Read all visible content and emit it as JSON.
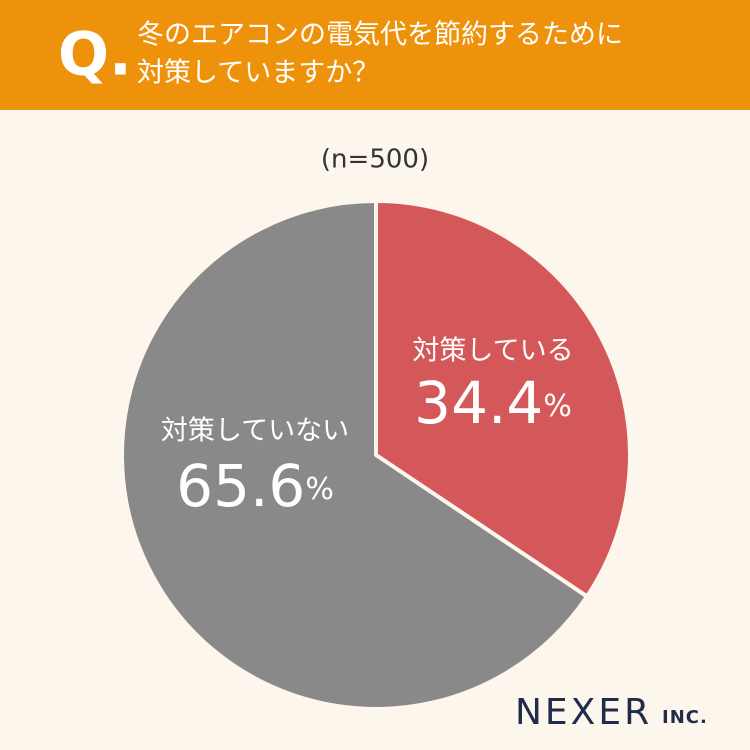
{
  "chart_data": {
    "type": "pie",
    "question_marker": "Q.",
    "title": [
      "冬のエアコンの電気代を節約するために",
      "対策していますか？"
    ],
    "subtitle": "(n=500)",
    "categories": [
      "対策している",
      "対策していない"
    ],
    "values": [
      34.4,
      65.6
    ],
    "value_labels": [
      "34.4%",
      "65.6%"
    ],
    "colors": [
      "#d4585a",
      "#898989"
    ],
    "brand": "NEXER",
    "brand_suffix": "INC."
  }
}
